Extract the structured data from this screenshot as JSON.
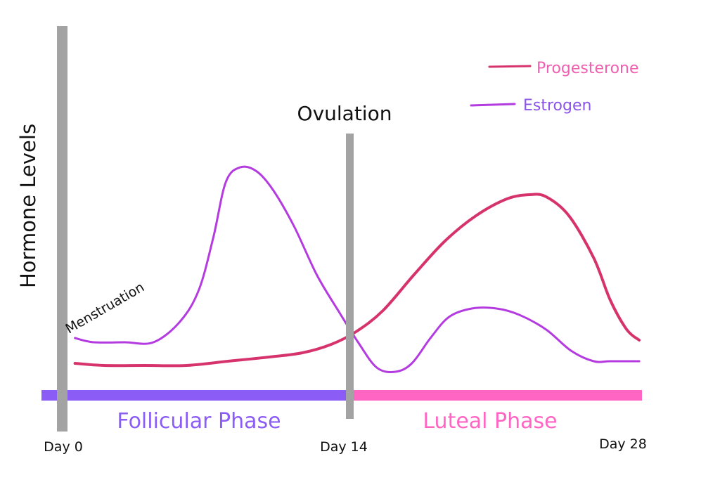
{
  "chart_data": {
    "type": "line",
    "ylabel": "Hormone Levels",
    "x_ticks": [
      {
        "day": 0,
        "label": "Day 0"
      },
      {
        "day": 14,
        "label": "Day 14"
      },
      {
        "day": 28,
        "label": "Day 28"
      }
    ],
    "xlim": [
      0,
      28
    ],
    "ylim": [
      0,
      100
    ],
    "legend_position": "top-right",
    "grid": false,
    "series": [
      {
        "name": "Progesterone",
        "color": "#d6336c",
        "points": [
          [
            0.6,
            10
          ],
          [
            2,
            9
          ],
          [
            4,
            9
          ],
          [
            6,
            9
          ],
          [
            8,
            11
          ],
          [
            10,
            13
          ],
          [
            11.6,
            15
          ],
          [
            13,
            19
          ],
          [
            14.2,
            25
          ],
          [
            15.5,
            35
          ],
          [
            17,
            52
          ],
          [
            18.5,
            68
          ],
          [
            20,
            80
          ],
          [
            21.5,
            88
          ],
          [
            22.6,
            90
          ],
          [
            23.4,
            89
          ],
          [
            24.5,
            80
          ],
          [
            25.7,
            60
          ],
          [
            26.5,
            40
          ],
          [
            27.3,
            26
          ],
          [
            27.9,
            21
          ]
        ]
      },
      {
        "name": "Estrogen",
        "color": "#b43be0",
        "points": [
          [
            0.6,
            22
          ],
          [
            1.5,
            20
          ],
          [
            3,
            20
          ],
          [
            4.4,
            20
          ],
          [
            5.7,
            30
          ],
          [
            6.6,
            45
          ],
          [
            7.3,
            70
          ],
          [
            7.9,
            96
          ],
          [
            8.6,
            103
          ],
          [
            9.4,
            101
          ],
          [
            10.2,
            92
          ],
          [
            11.2,
            75
          ],
          [
            12.3,
            52
          ],
          [
            13.4,
            34
          ],
          [
            14.3,
            20
          ],
          [
            15.2,
            8
          ],
          [
            16.1,
            6
          ],
          [
            16.9,
            10
          ],
          [
            17.8,
            22
          ],
          [
            18.7,
            32
          ],
          [
            19.8,
            36
          ],
          [
            21,
            36
          ],
          [
            22.1,
            33
          ],
          [
            23.4,
            26
          ],
          [
            24.6,
            16
          ],
          [
            25.7,
            11
          ],
          [
            26.5,
            11
          ],
          [
            27.9,
            11
          ]
        ]
      }
    ],
    "phases": [
      {
        "label": "Follicular Phase",
        "start": 0,
        "end": 14,
        "color": "#8b5cf6"
      },
      {
        "label": "Luteal Phase",
        "start": 14,
        "end": 28,
        "color": "#ff66c4"
      }
    ],
    "markers": [
      {
        "label": "Menstruation",
        "day": 0
      },
      {
        "label": "Ovulation",
        "day": 14
      }
    ],
    "colors": {
      "marker_bar": "#a3a3a3",
      "progesterone_label": "#f060b0",
      "estrogen_label": "#8b55e8"
    }
  }
}
